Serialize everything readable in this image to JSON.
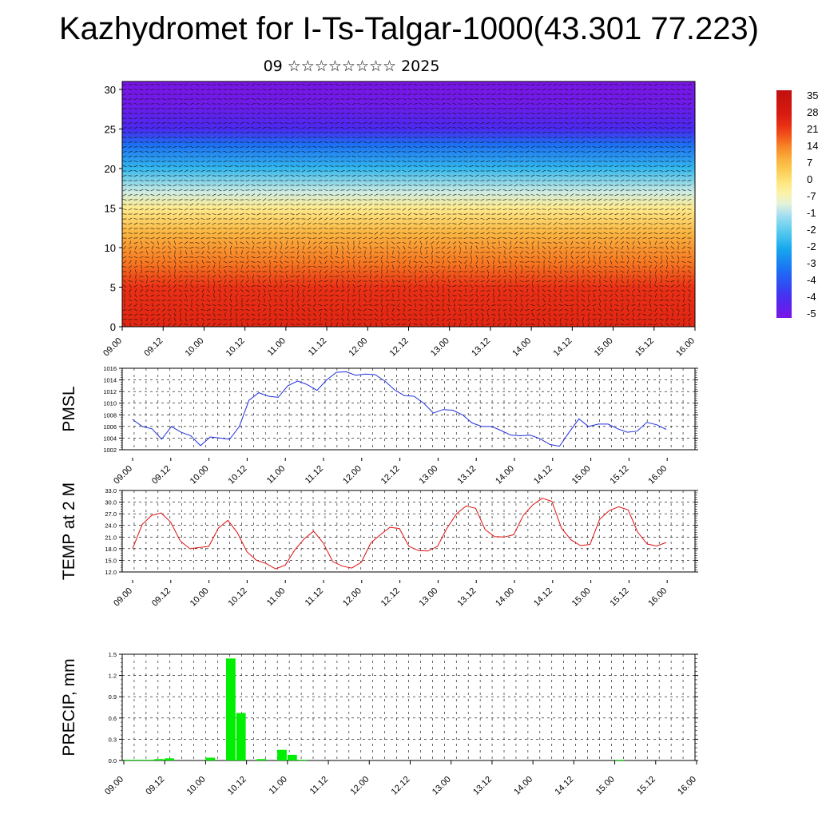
{
  "title": "Kazhydromet for I-Ts-Talgar-1000(43.301 77.223)",
  "subtitle": "09 ☆☆☆☆☆☆☆☆ 2025",
  "colors": {
    "pmsl_line": "#1f2fe0",
    "temp_line": "#e01010",
    "precip_bar": "#00ee00",
    "grid": "#000000"
  },
  "x_tick_labels": [
    "09.00",
    "09.12",
    "10.00",
    "10.12",
    "11.00",
    "11.12",
    "12.00",
    "12.12",
    "13.00",
    "13.12",
    "14.00",
    "14.12",
    "15.00",
    "15.12",
    "16.00"
  ],
  "chart_data": [
    {
      "type": "heatmap",
      "panel": "cross-section",
      "xlabel": "",
      "ylabel": "",
      "x_tick_labels": [
        "09.00",
        "09.12",
        "10.00",
        "10.12",
        "11.00",
        "11.12",
        "12.00",
        "12.12",
        "13.00",
        "13.12",
        "14.00",
        "14.12",
        "15.00",
        "15.12",
        "16.00"
      ],
      "ylim": [
        0,
        31
      ],
      "y_ticks": [
        0,
        5,
        10,
        15,
        20,
        25,
        30
      ],
      "colorbar_labels": [
        "35",
        "28",
        "21",
        "14",
        "7",
        "0",
        "-7",
        "-1",
        "-2",
        "-2",
        "-3",
        "-4",
        "-4",
        "-5"
      ],
      "levels": [
        {
          "level": 0,
          "temperature": 22
        },
        {
          "level": 5,
          "temperature": 20
        },
        {
          "level": 8,
          "temperature": 13
        },
        {
          "level": 12,
          "temperature": 5
        },
        {
          "level": 15,
          "temperature": -5
        },
        {
          "level": 17,
          "temperature": -14
        },
        {
          "level": 20,
          "temperature": -28
        },
        {
          "level": 23,
          "temperature": -40
        },
        {
          "level": 25,
          "temperature": -52
        },
        {
          "level": 28,
          "temperature": -58
        },
        {
          "level": 31,
          "temperature": -60
        }
      ],
      "wind_vectors": "dense field of wind arrows overlaid on temperature shading"
    },
    {
      "type": "line",
      "panel": "pmsl",
      "ylabel": "PMSL",
      "ylim": [
        1002,
        1016
      ],
      "y_ticks": [
        "1002",
        "1004",
        "1006",
        "1008",
        "1010",
        "1012",
        "1014",
        "1016"
      ],
      "x_hours": [
        0,
        3,
        6,
        9,
        12,
        15,
        18,
        21,
        24,
        27,
        30,
        33,
        36,
        39,
        42,
        45,
        48,
        51,
        54,
        57,
        60,
        63,
        66,
        69,
        72,
        75,
        78,
        81,
        84,
        87,
        90,
        93,
        96,
        99,
        102,
        105,
        108,
        111,
        114,
        117,
        120,
        123,
        126,
        129,
        132,
        135,
        138,
        141,
        144,
        147,
        150,
        153,
        156,
        159,
        162,
        165
      ],
      "series": [
        {
          "values": [
            1007.2,
            1006.0,
            1005.6,
            1003.8,
            1006.0,
            1005.0,
            1004.4,
            1002.7,
            1004.2,
            1004.0,
            1003.8,
            1006.0,
            1010.5,
            1011.8,
            1011.2,
            1011.0,
            1013.0,
            1013.8,
            1013.2,
            1012.2,
            1014.0,
            1015.3,
            1015.4,
            1014.8,
            1015.0,
            1014.9,
            1013.8,
            1012.3,
            1011.3,
            1011.2,
            1010.0,
            1008.3,
            1008.9,
            1008.8,
            1008.0,
            1006.6,
            1006.0,
            1006.0,
            1005.3,
            1004.5,
            1004.4,
            1004.5,
            1003.9,
            1002.9,
            1002.6,
            1005.0,
            1007.3,
            1006.0,
            1006.4,
            1006.4,
            1005.6,
            1005.0,
            1005.2,
            1006.7,
            1006.3,
            1005.5
          ]
        }
      ]
    },
    {
      "type": "line",
      "panel": "temp",
      "ylabel": "TEMP at 2 M",
      "ylim": [
        12,
        33
      ],
      "y_ticks": [
        "12.0",
        "15.0",
        "18.0",
        "21.0",
        "24.0",
        "27.0",
        "30.0",
        "33.0"
      ],
      "series": [
        {
          "values": [
            18.0,
            24.2,
            26.6,
            27.2,
            24.8,
            20.0,
            18.0,
            18.3,
            18.6,
            23.3,
            25.3,
            22.1,
            17.2,
            15.0,
            14.2,
            12.8,
            13.7,
            17.6,
            20.5,
            22.5,
            19.5,
            14.7,
            13.5,
            13.0,
            14.5,
            19.5,
            21.6,
            23.5,
            23.2,
            18.6,
            17.5,
            17.4,
            18.6,
            23.3,
            27.0,
            29.0,
            28.4,
            22.9,
            21.1,
            21.0,
            21.6,
            26.6,
            29.3,
            31.0,
            30.2,
            23.3,
            20.3,
            18.8,
            19.1,
            25.5,
            27.8,
            28.8,
            28.0,
            22.3,
            19.2,
            18.7,
            19.6
          ]
        }
      ]
    },
    {
      "type": "bar",
      "panel": "precip",
      "ylabel": "PRECIP, mm",
      "ylim": [
        0,
        1.5
      ],
      "y_ticks": [
        "0.0",
        "0.3",
        "0.6",
        "0.9",
        "1.2",
        "1.5"
      ],
      "bars": [
        {
          "x_hour": 3,
          "value": 0.01
        },
        {
          "x_hour": 6,
          "value": 0.01
        },
        {
          "x_hour": 9,
          "value": 0.01
        },
        {
          "x_hour": 12,
          "value": 0.02
        },
        {
          "x_hour": 15,
          "value": 0.03
        },
        {
          "x_hour": 27,
          "value": 0.04
        },
        {
          "x_hour": 33,
          "value": 1.44
        },
        {
          "x_hour": 36,
          "value": 0.67
        },
        {
          "x_hour": 42,
          "value": 0.02
        },
        {
          "x_hour": 48,
          "value": 0.15
        },
        {
          "x_hour": 51,
          "value": 0.08
        },
        {
          "x_hour": 54,
          "value": 0.01
        },
        {
          "x_hour": 147,
          "value": 0.01
        }
      ]
    }
  ]
}
